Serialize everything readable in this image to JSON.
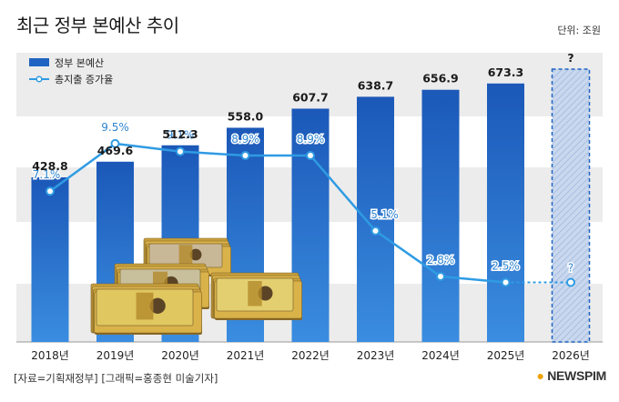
{
  "title": "최근 정부 본예산 추이",
  "unit": "단위: 조원",
  "source": "[자료=기획재정부] [그래픽=홍종현 미술기자]",
  "brand": "NEWSPIM",
  "colors": {
    "bar": "#1f63c2",
    "line": "#2f9be3",
    "text_dark": "#1a1a1a",
    "band": "#ececec"
  },
  "chart_data": {
    "type": "bar",
    "categories": [
      "2018년",
      "2019년",
      "2020년",
      "2021년",
      "2022년",
      "2023년",
      "2024년",
      "2025년",
      "2026년"
    ],
    "series": [
      {
        "name": "정부 본예산",
        "type": "bar",
        "values": [
          428.8,
          469.6,
          512.3,
          558.0,
          607.7,
          638.7,
          656.9,
          673.3,
          null
        ],
        "labels": [
          "428.8",
          "469.6",
          "512.3",
          "558.0",
          "607.7",
          "638.7",
          "656.9",
          "673.3",
          "?"
        ]
      },
      {
        "name": "총지출 증가율",
        "type": "line",
        "values": [
          7.1,
          9.5,
          9.1,
          8.9,
          8.9,
          5.1,
          2.8,
          2.5,
          null
        ],
        "labels": [
          "7.1%",
          "9.5%",
          "9.1%",
          "8.9%",
          "8.9%",
          "5.1%",
          "2.8%",
          "2.5%",
          "?"
        ]
      }
    ],
    "legend_position": "top-left",
    "grid": false
  }
}
